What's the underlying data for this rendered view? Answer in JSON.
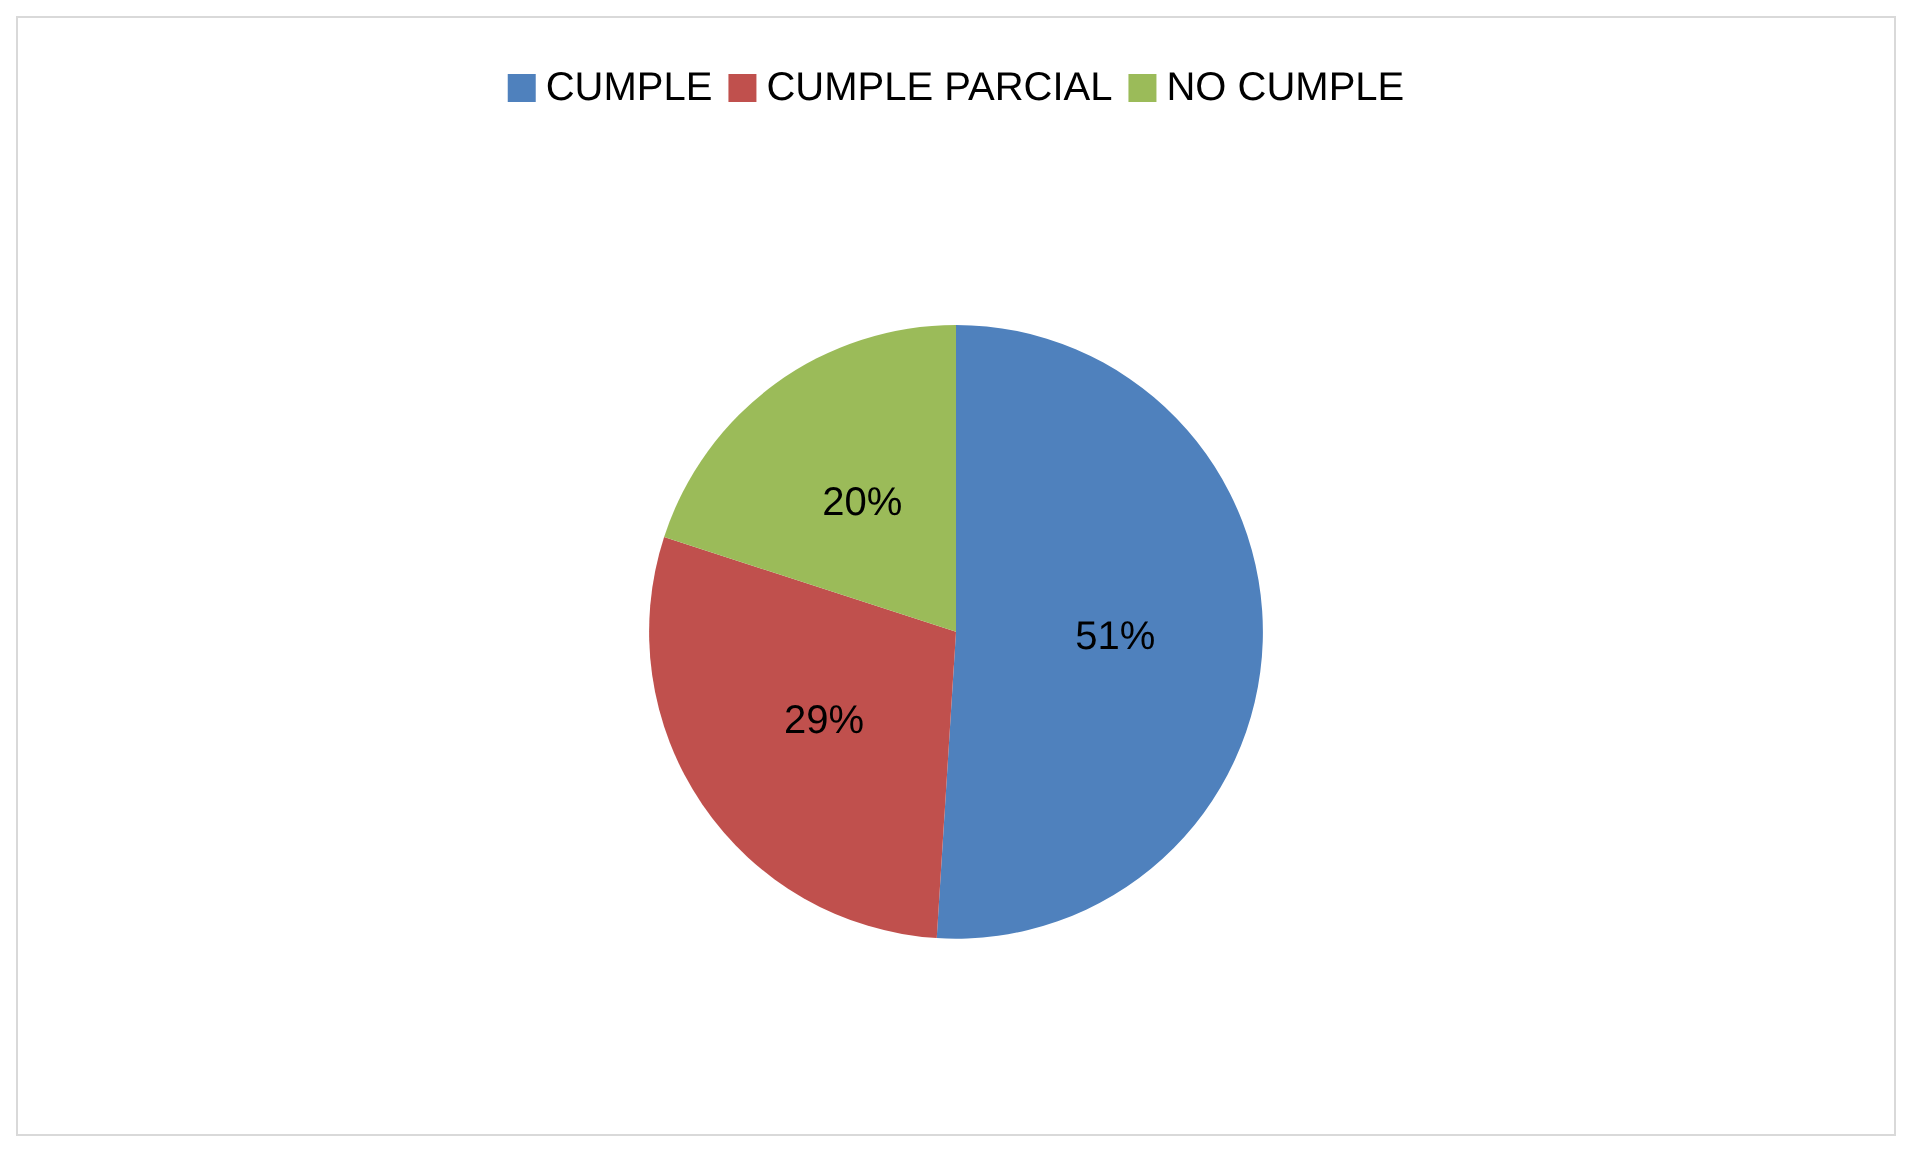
{
  "chart_data": {
    "type": "pie",
    "categories": [
      "CUMPLE",
      "CUMPLE PARCIAL",
      "NO CUMPLE"
    ],
    "values": [
      51,
      29,
      20
    ],
    "colors": [
      "#4f81bd",
      "#c0504d",
      "#9bbb59"
    ],
    "value_labels": [
      "51%",
      "29%",
      "20%"
    ],
    "legend": "top"
  }
}
